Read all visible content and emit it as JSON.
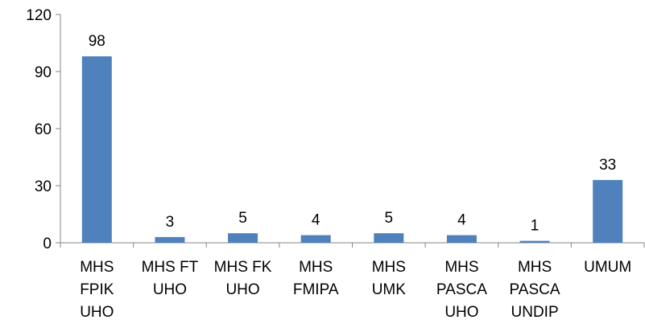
{
  "chart_data": {
    "type": "bar",
    "title": "",
    "xlabel": "",
    "ylabel": "",
    "ylim": [
      0,
      120
    ],
    "yticks": [
      0,
      30,
      60,
      90,
      120
    ],
    "grid": false,
    "legend": "none",
    "bar_color": "#4F81BD",
    "categories": [
      [
        "MHS",
        "FPIK",
        "UHO"
      ],
      [
        "MHS FT",
        "UHO"
      ],
      [
        "MHS FK",
        "UHO"
      ],
      [
        "MHS",
        "FMIPA"
      ],
      [
        "MHS",
        "UMK"
      ],
      [
        "MHS",
        "PASCA",
        "UHO"
      ],
      [
        "MHS",
        "PASCA",
        "UNDIP"
      ],
      [
        "UMUM"
      ]
    ],
    "values": [
      98,
      3,
      5,
      4,
      5,
      4,
      1,
      33
    ],
    "data_labels": [
      "98",
      "3",
      "5",
      "4",
      "5",
      "4",
      "1",
      "33"
    ]
  }
}
